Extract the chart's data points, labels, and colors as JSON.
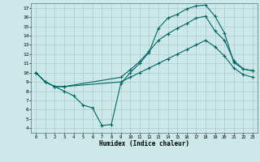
{
  "bg_color": "#cce8e8",
  "grid_color": "#aacccc",
  "line_color": "#006666",
  "xlabel": "Humidex (Indice chaleur)",
  "xlim": [
    -0.5,
    23.5
  ],
  "ylim": [
    3.5,
    17.5
  ],
  "xticks": [
    0,
    1,
    2,
    3,
    4,
    5,
    6,
    7,
    8,
    9,
    10,
    11,
    12,
    13,
    14,
    15,
    16,
    17,
    18,
    19,
    20,
    21,
    22,
    23
  ],
  "yticks": [
    4,
    5,
    6,
    7,
    8,
    9,
    10,
    11,
    12,
    13,
    14,
    15,
    16,
    17
  ],
  "line1_x": [
    0,
    1,
    2,
    3,
    4,
    5,
    6,
    7,
    8,
    9,
    10,
    11,
    12,
    13,
    14,
    15,
    16,
    17,
    18,
    19,
    20,
    21,
    22,
    23
  ],
  "line1_y": [
    10,
    9,
    8.5,
    8.0,
    7.5,
    6.5,
    6.2,
    4.3,
    4.4,
    8.8,
    10.0,
    11.0,
    12.2,
    14.8,
    15.9,
    16.3,
    16.9,
    17.2,
    17.3,
    16.1,
    14.3,
    11.1,
    10.4,
    10.2
  ],
  "line2_x": [
    0,
    1,
    2,
    3,
    9,
    10,
    11,
    12,
    13,
    14,
    15,
    16,
    17,
    18,
    19,
    20,
    21,
    22,
    23
  ],
  "line2_y": [
    10,
    9,
    8.5,
    8.5,
    9.5,
    10.3,
    11.2,
    12.3,
    13.5,
    14.2,
    14.8,
    15.3,
    15.9,
    16.1,
    14.5,
    13.5,
    11.3,
    10.4,
    10.2
  ],
  "line3_x": [
    0,
    1,
    2,
    3,
    9,
    10,
    11,
    12,
    13,
    14,
    15,
    16,
    17,
    18,
    19,
    20,
    21,
    22,
    23
  ],
  "line3_y": [
    10,
    9,
    8.5,
    8.5,
    9.0,
    9.5,
    10.0,
    10.5,
    11.0,
    11.5,
    12.0,
    12.5,
    13.0,
    13.5,
    12.8,
    11.8,
    10.5,
    9.8,
    9.5
  ]
}
